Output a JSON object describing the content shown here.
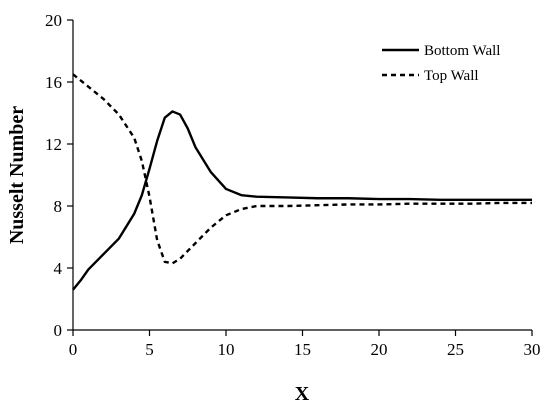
{
  "chart_data": {
    "type": "line",
    "title": "",
    "xlabel": "X",
    "ylabel": "Nusselt Number",
    "xlim": [
      0,
      30
    ],
    "ylim": [
      0,
      20
    ],
    "xticks": [
      0,
      5,
      10,
      15,
      20,
      25,
      30
    ],
    "yticks": [
      0,
      4,
      8,
      12,
      16,
      20
    ],
    "grid": false,
    "legend_position": "top-right",
    "series": [
      {
        "name": "Bottom Wall",
        "style": "solid",
        "color": "#000000",
        "x": [
          0,
          0.5,
          1,
          2,
          3,
          4,
          4.5,
          5,
          5.5,
          6,
          6.5,
          7,
          7.5,
          8,
          9,
          10,
          11,
          12,
          14,
          16,
          18,
          20,
          22,
          24,
          26,
          28,
          30
        ],
        "y": [
          2.6,
          3.2,
          3.9,
          4.9,
          5.9,
          7.5,
          8.7,
          10.4,
          12.2,
          13.7,
          14.1,
          13.9,
          13.0,
          11.8,
          10.2,
          9.1,
          8.7,
          8.6,
          8.55,
          8.5,
          8.5,
          8.45,
          8.45,
          8.4,
          8.4,
          8.4,
          8.4
        ]
      },
      {
        "name": "Top Wall",
        "style": "dashed",
        "color": "#000000",
        "x": [
          0,
          0.5,
          1,
          2,
          3,
          4,
          4.5,
          5,
          5.5,
          6,
          6.5,
          7,
          8,
          9,
          10,
          11,
          12,
          14,
          16,
          18,
          20,
          22,
          24,
          26,
          28,
          30
        ],
        "y": [
          16.5,
          16.1,
          15.7,
          14.9,
          13.9,
          12.4,
          10.9,
          8.6,
          5.8,
          4.4,
          4.3,
          4.6,
          5.6,
          6.6,
          7.4,
          7.8,
          8.0,
          8.0,
          8.05,
          8.1,
          8.1,
          8.15,
          8.15,
          8.15,
          8.2,
          8.2
        ]
      }
    ]
  }
}
